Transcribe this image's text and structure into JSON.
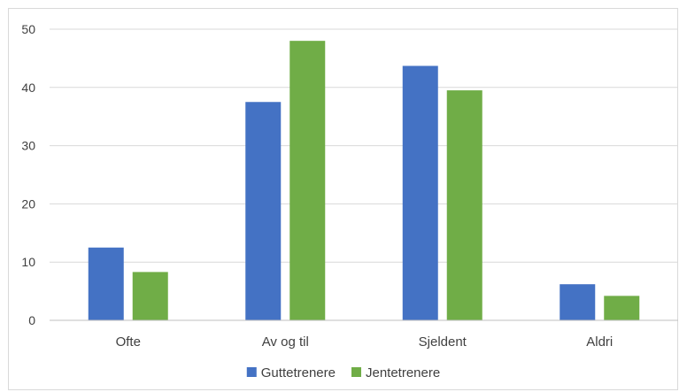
{
  "chart_data": {
    "type": "bar",
    "title": "",
    "xlabel": "",
    "ylabel": "",
    "categories": [
      "Ofte",
      "Av og til",
      "Sjeldent",
      "Aldri"
    ],
    "series": [
      {
        "name": "Guttetrenere",
        "color": "#4472c4",
        "values": [
          12.5,
          37.5,
          43.7,
          6.2
        ]
      },
      {
        "name": "Jentetrenere",
        "color": "#70ad47",
        "values": [
          8.3,
          48.0,
          39.5,
          4.2
        ]
      }
    ],
    "ylim": [
      0,
      50
    ],
    "yticks": [
      0,
      10,
      20,
      30,
      40,
      50
    ],
    "grid": true,
    "legend_position": "bottom"
  }
}
